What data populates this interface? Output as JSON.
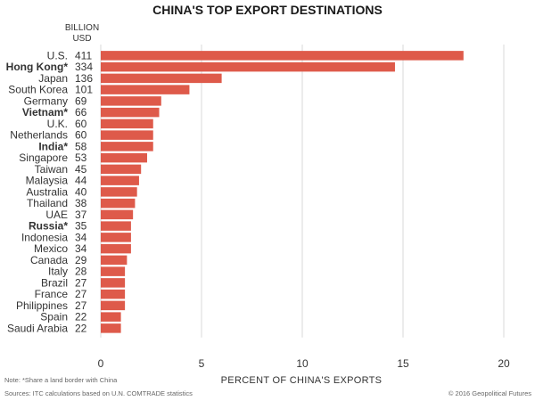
{
  "chart_data": {
    "type": "bar",
    "orientation": "horizontal",
    "title": "CHINA'S TOP EXPORT DESTINATIONS",
    "value_column_header": [
      "BILLION",
      "USD"
    ],
    "xlabel": "PERCENT OF CHINA'S EXPORTS",
    "ylabel": "",
    "xlim": [
      0,
      20
    ],
    "xticks": [
      "0",
      "5",
      "10",
      "15",
      "20"
    ],
    "grid": true,
    "bar_color": "#de5a4a",
    "categories": [
      "U.S.",
      "Hong Kong*",
      "Japan",
      "South Korea",
      "Germany",
      "Vietnam*",
      "U.K.",
      "Netherlands",
      "India*",
      "Singapore",
      "Taiwan",
      "Malaysia",
      "Australia",
      "Thailand",
      "UAE",
      "Russia*",
      "Indonesia",
      "Mexico",
      "Canada",
      "Italy",
      "Brazil",
      "France",
      "Philippines",
      "Spain",
      "Saudi Arabia"
    ],
    "emphasized_categories": [
      "Hong Kong*",
      "Vietnam*",
      "India*",
      "Russia*"
    ],
    "billion_usd": [
      "411",
      "334",
      "136",
      "101",
      "69",
      "66",
      "60",
      "60",
      "58",
      "53",
      "45",
      "44",
      "40",
      "38",
      "37",
      "35",
      "34",
      "34",
      "29",
      "28",
      "27",
      "27",
      "27",
      "22",
      "22"
    ],
    "values": [
      18.0,
      14.6,
      6.0,
      4.4,
      3.0,
      2.9,
      2.6,
      2.6,
      2.6,
      2.3,
      2.0,
      1.9,
      1.8,
      1.7,
      1.6,
      1.5,
      1.5,
      1.5,
      1.3,
      1.2,
      1.2,
      1.2,
      1.2,
      1.0,
      1.0
    ]
  },
  "footnote": "Note: *Share a land border with China",
  "source": "Sources: ITC calculations based on U.N. COMTRADE statistics",
  "credit": "© 2016 Geopolitical Futures"
}
